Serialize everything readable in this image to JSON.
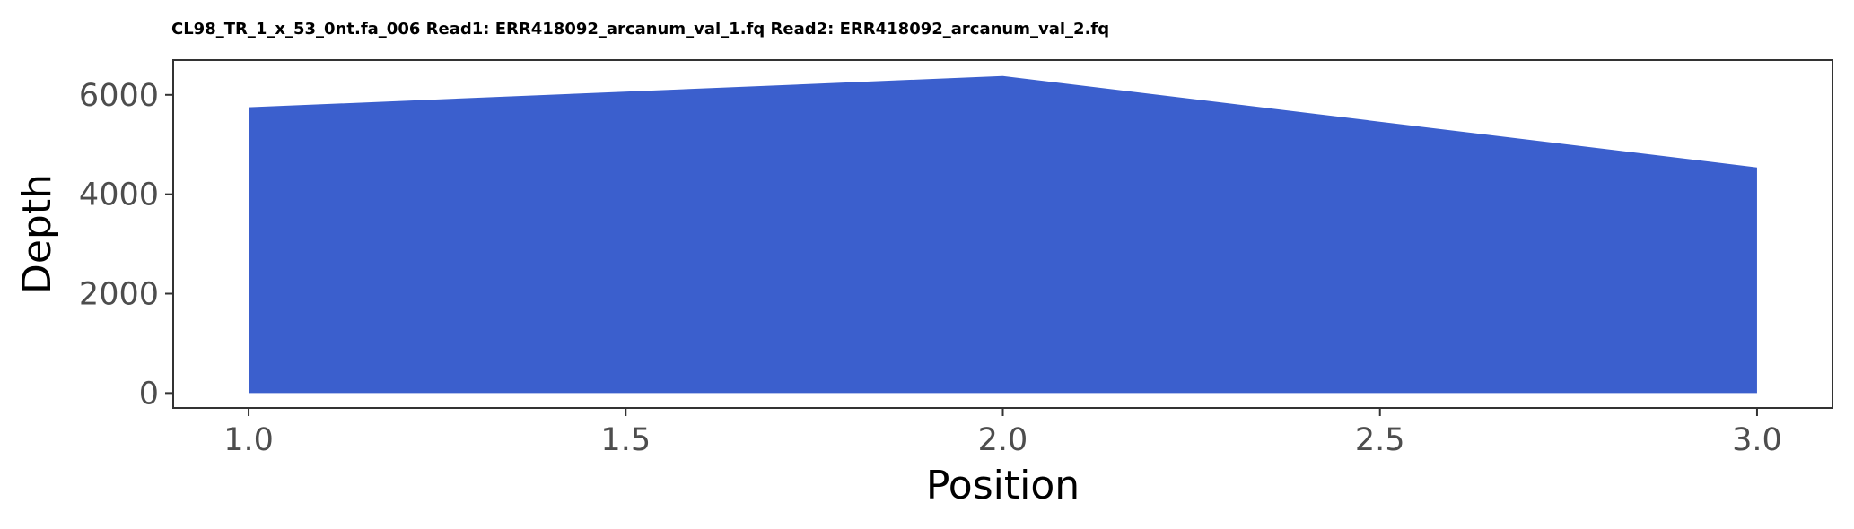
{
  "chart_data": {
    "type": "area",
    "title": "CL98_TR_1_x_53_0nt.fa_006 Read1: ERR418092_arcanum_val_1.fq Read2: ERR418092_arcanum_val_2.fq",
    "xlabel": "Position",
    "ylabel": "Depth",
    "x": [
      1.0,
      2.0,
      3.0
    ],
    "series": [
      {
        "values": [
          5750,
          6380,
          4540
        ],
        "color": "#3B5FCD"
      }
    ],
    "xlim": [
      0.9,
      3.1
    ],
    "ylim": [
      -300,
      6700
    ],
    "xticks": [
      1.0,
      1.5,
      2.0,
      2.5,
      3.0
    ],
    "xtick_labels": [
      "1.0",
      "1.5",
      "2.0",
      "2.5",
      "3.0"
    ],
    "yticks": [
      0,
      2000,
      4000,
      6000
    ],
    "ytick_labels": [
      "0",
      "2000",
      "4000",
      "6000"
    ],
    "grid": false,
    "legend": "none"
  }
}
